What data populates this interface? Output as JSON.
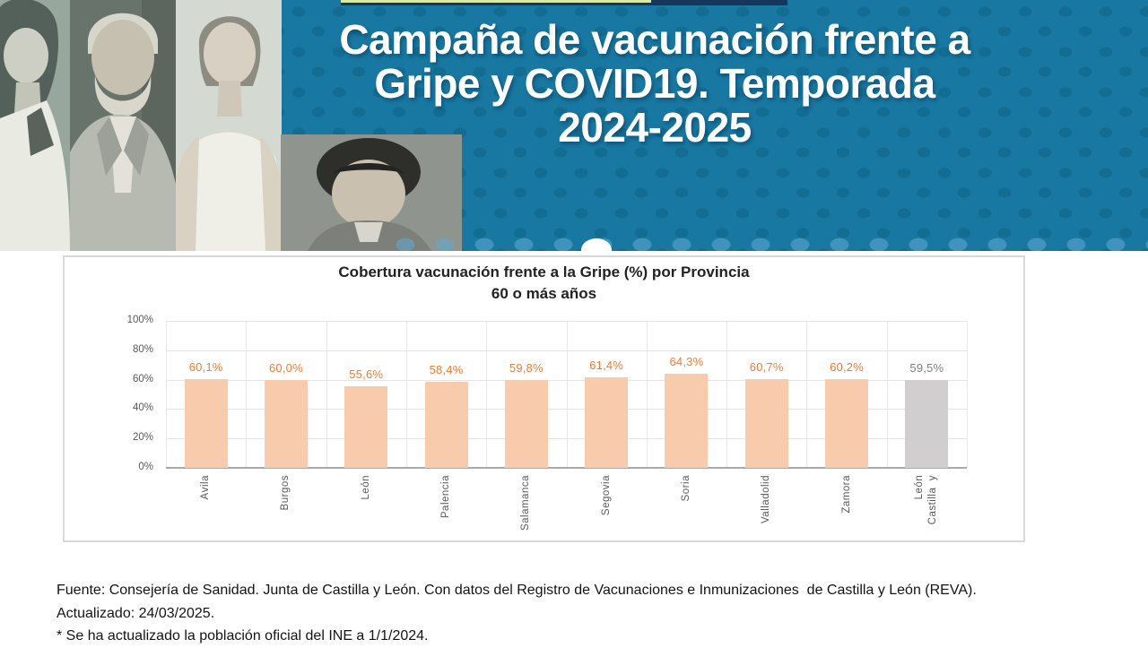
{
  "header": {
    "title_lines": [
      "Campaña de vacunación frente a",
      "Gripe y COVID19. Temporada",
      "2024-2025"
    ],
    "background_color": "#1878A2",
    "dot_color": "#136C92",
    "accent_line_color": "#DDE9A6",
    "accent_bar_color": "#17365C",
    "photos": [
      "adult-woman",
      "older-man",
      "young-woman",
      "child-boy"
    ]
  },
  "chart_data": {
    "type": "bar",
    "title": "Cobertura vacunación frente a la Gripe (%) por Provincia",
    "subtitle": "60 o más años",
    "categories": [
      "Ávila",
      "Burgos",
      "León",
      "Palencia",
      "Salamanca",
      "Segovia",
      "Soria",
      "Valladolid",
      "Zamora",
      "Castilla  y\nLeón"
    ],
    "values": [
      60.1,
      60.0,
      55.6,
      58.4,
      59.8,
      61.4,
      64.3,
      60.7,
      60.2,
      59.5
    ],
    "value_labels": [
      "60,1%",
      "60,0%",
      "55,6%",
      "58,4%",
      "59,8%",
      "61,4%",
      "64,3%",
      "60,7%",
      "60,2%",
      "59,5%"
    ],
    "xlabel": "",
    "ylabel": "",
    "ylim": [
      0,
      100
    ],
    "ytick_percents": [
      0,
      20,
      40,
      60,
      80,
      100
    ],
    "ytick_labels": [
      "0%",
      "20%",
      "40%",
      "60%",
      "80%",
      "100%"
    ],
    "grid": true,
    "legend_position": "none",
    "bar_color": "#F8CBAD",
    "last_bar_color": "#D0CECE",
    "value_label_color": "#ED7D31",
    "last_value_label_color": "#7F7F7F",
    "axis_text_color": "#595959"
  },
  "footer": {
    "lines": [
      "Fuente: Consejería de Sanidad. Junta de Castilla y León. Con datos del Registro de Vacunaciones e Inmunizaciones  de Castilla y León (REVA).",
      "Actualizado: 24/03/2025.",
      "* Se ha actualizado la población oficial del INE a 1/1/2024."
    ]
  }
}
